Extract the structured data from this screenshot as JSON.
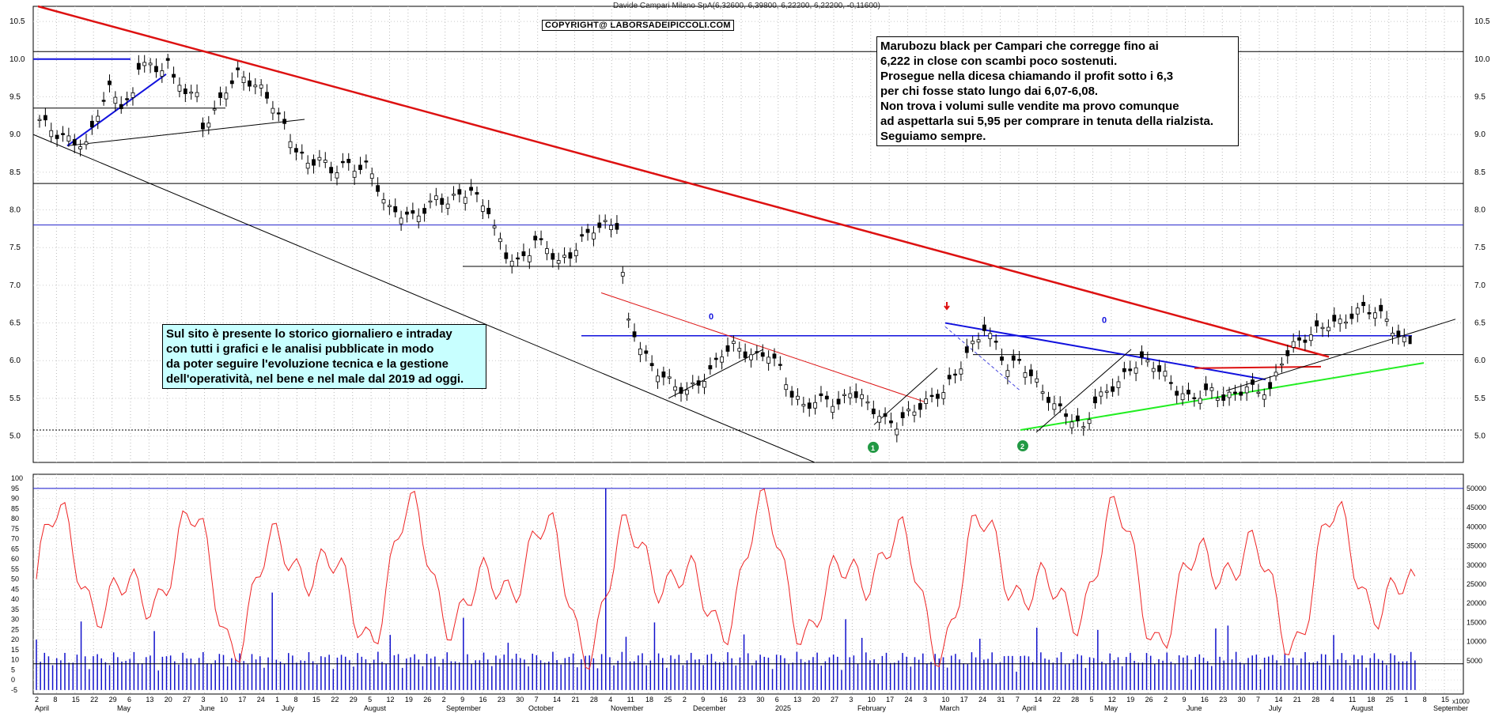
{
  "header": "Davide Campari Milano SpA(6,32600, 6,39800, 6,22200, 6,22200, -0,11600)",
  "copyright": "COPYRIGHT@ LABORSADEIPICCOLI.COM",
  "annotation_right": [
    "Marubozu black per Campari che corregge fino ai",
    "6,222  in close con scambi poco sostenuti.",
    "Prosegue nella dicesa chiamando il profit sotto i 6,3",
    "per chi fosse stato lungo dai 6,07-6,08.",
    "Non trova i volumi sulle vendite ma provo comunque",
    "ad aspettarla sui 5,95 per comprare in tenuta della rialzista.",
    "Seguiamo sempre."
  ],
  "annotation_left": [
    "Sul sito è presente lo storico giornaliero e intraday",
    "con tutti i grafici e le analisi pubblicate in modo",
    "da poter seguire l'evoluzione tecnica e la gestione",
    "dell'operatività, nel bene e nel male dal 2019 ad oggi."
  ],
  "chart_data": {
    "type": "candlestick",
    "price_axis": {
      "ticks": [
        5.0,
        5.5,
        6.0,
        6.5,
        7.0,
        7.5,
        8.0,
        8.5,
        9.0,
        9.5,
        10.0,
        10.5
      ],
      "labels": [
        "5.0",
        "5.5",
        "6.0",
        "6.5",
        "7.0",
        "7.5",
        "8.0",
        "8.5",
        "9.0",
        "9.5",
        "10.0",
        "10.5"
      ]
    },
    "osc_axis_left": {
      "ticks": [
        -5,
        0,
        5,
        10,
        15,
        20,
        25,
        30,
        35,
        40,
        45,
        50,
        55,
        60,
        65,
        70,
        75,
        80,
        85,
        90,
        95,
        100
      ],
      "labels": [
        "-5",
        "0",
        "5",
        "10",
        "15",
        "20",
        "25",
        "30",
        "35",
        "40",
        "45",
        "50",
        "55",
        "60",
        "65",
        "70",
        "75",
        "80",
        "85",
        "90",
        "95",
        "100"
      ]
    },
    "volume_axis_right": {
      "ticks": [
        5000,
        10000,
        15000,
        20000,
        25000,
        30000,
        35000,
        40000,
        45000,
        50000
      ],
      "labels": [
        "5000",
        "10000",
        "15000",
        "20000",
        "25000",
        "30000",
        "35000",
        "40000",
        "45000",
        "50000"
      ],
      "unit": "x1000"
    },
    "x_day_labels": [
      "2",
      "8",
      "15",
      "22",
      "29",
      "6",
      "13",
      "20",
      "27",
      "3",
      "10",
      "17",
      "24",
      "1",
      "8",
      "15",
      "22",
      "29",
      "5",
      "12",
      "19",
      "26",
      "2",
      "9",
      "16",
      "23",
      "30",
      "7",
      "14",
      "21",
      "28",
      "4",
      "11",
      "18",
      "25",
      "2",
      "9",
      "16",
      "23",
      "30",
      "6",
      "13",
      "20",
      "27",
      "3",
      "10",
      "17",
      "24",
      "3",
      "10",
      "17",
      "24",
      "31",
      "7",
      "14",
      "22",
      "28",
      "5",
      "12",
      "19",
      "26",
      "2",
      "9",
      "16",
      "23",
      "30",
      "7",
      "14",
      "21",
      "28",
      "4",
      "11",
      "18",
      "25",
      "1",
      "8",
      "15"
    ],
    "x_month_labels": [
      "April",
      "May",
      "June",
      "July",
      "August",
      "September",
      "October",
      "November",
      "December",
      "2025",
      "February",
      "March",
      "April",
      "May",
      "June",
      "July",
      "August",
      "September"
    ],
    "price_path": [
      [
        0,
        9.2
      ],
      [
        3,
        9.0
      ],
      [
        6,
        8.9
      ],
      [
        8,
        8.85
      ],
      [
        10,
        9.3
      ],
      [
        12,
        9.6
      ],
      [
        14,
        9.4
      ],
      [
        16,
        9.5
      ],
      [
        17,
        9.9
      ],
      [
        18,
        10.0
      ],
      [
        20,
        9.8
      ],
      [
        22,
        10.0
      ],
      [
        23,
        9.7
      ],
      [
        25,
        9.6
      ],
      [
        27,
        9.5
      ],
      [
        28,
        9.1
      ],
      [
        30,
        9.3
      ],
      [
        32,
        9.6
      ],
      [
        34,
        9.8
      ],
      [
        36,
        9.7
      ],
      [
        38,
        9.6
      ],
      [
        40,
        9.4
      ],
      [
        42,
        9.1
      ],
      [
        44,
        8.8
      ],
      [
        46,
        8.6
      ],
      [
        48,
        8.7
      ],
      [
        50,
        8.5
      ],
      [
        52,
        8.6
      ],
      [
        54,
        8.55
      ],
      [
        56,
        8.6
      ],
      [
        58,
        8.3
      ],
      [
        60,
        8.0
      ],
      [
        62,
        7.95
      ],
      [
        64,
        7.9
      ],
      [
        66,
        8.0
      ],
      [
        68,
        8.15
      ],
      [
        70,
        8.1
      ],
      [
        72,
        8.2
      ],
      [
        74,
        8.25
      ],
      [
        75,
        8.15
      ],
      [
        77,
        8.0
      ],
      [
        78,
        7.75
      ],
      [
        80,
        7.4
      ],
      [
        82,
        7.3
      ],
      [
        84,
        7.45
      ],
      [
        85,
        7.6
      ],
      [
        87,
        7.5
      ],
      [
        89,
        7.3
      ],
      [
        91,
        7.4
      ],
      [
        93,
        7.6
      ],
      [
        95,
        7.75
      ],
      [
        97,
        7.8
      ],
      [
        99,
        7.8
      ],
      [
        101,
        6.5
      ],
      [
        103,
        6.2
      ],
      [
        105,
        5.9
      ],
      [
        107,
        5.8
      ],
      [
        109,
        5.65
      ],
      [
        111,
        5.6
      ],
      [
        113,
        5.7
      ],
      [
        115,
        5.85
      ],
      [
        117,
        6.1
      ],
      [
        119,
        6.2
      ],
      [
        121,
        6.1
      ],
      [
        123,
        6.05
      ],
      [
        125,
        6.1
      ],
      [
        127,
        5.9
      ],
      [
        129,
        5.55
      ],
      [
        131,
        5.4
      ],
      [
        133,
        5.45
      ],
      [
        135,
        5.5
      ],
      [
        137,
        5.4
      ],
      [
        139,
        5.6
      ],
      [
        141,
        5.5
      ],
      [
        143,
        5.35
      ],
      [
        145,
        5.2
      ],
      [
        147,
        5.15
      ],
      [
        149,
        5.3
      ],
      [
        151,
        5.4
      ],
      [
        153,
        5.5
      ],
      [
        155,
        5.6
      ],
      [
        157,
        5.8
      ],
      [
        159,
        6.1
      ],
      [
        161,
        6.3
      ],
      [
        162,
        6.45
      ],
      [
        164,
        6.2
      ],
      [
        166,
        5.9
      ],
      [
        168,
        6.0
      ],
      [
        170,
        5.8
      ],
      [
        172,
        5.6
      ],
      [
        174,
        5.4
      ],
      [
        176,
        5.3
      ],
      [
        178,
        5.15
      ],
      [
        179,
        5.1
      ],
      [
        181,
        5.45
      ],
      [
        183,
        5.6
      ],
      [
        185,
        5.7
      ],
      [
        187,
        5.9
      ],
      [
        189,
        6.0
      ],
      [
        191,
        5.95
      ],
      [
        193,
        5.8
      ],
      [
        195,
        5.6
      ],
      [
        197,
        5.5
      ],
      [
        199,
        5.55
      ],
      [
        201,
        5.6
      ],
      [
        203,
        5.5
      ],
      [
        205,
        5.55
      ],
      [
        207,
        5.65
      ],
      [
        209,
        5.6
      ],
      [
        211,
        5.6
      ],
      [
        213,
        6.0
      ],
      [
        215,
        6.2
      ],
      [
        217,
        6.3
      ],
      [
        219,
        6.4
      ],
      [
        221,
        6.5
      ],
      [
        223,
        6.5
      ],
      [
        225,
        6.6
      ],
      [
        227,
        6.7
      ],
      [
        229,
        6.65
      ],
      [
        231,
        6.55
      ],
      [
        233,
        6.3
      ],
      [
        235,
        6.22
      ]
    ],
    "volume_markers": "blue bars, daily volume",
    "oscillator": "red line 0-100"
  }
}
